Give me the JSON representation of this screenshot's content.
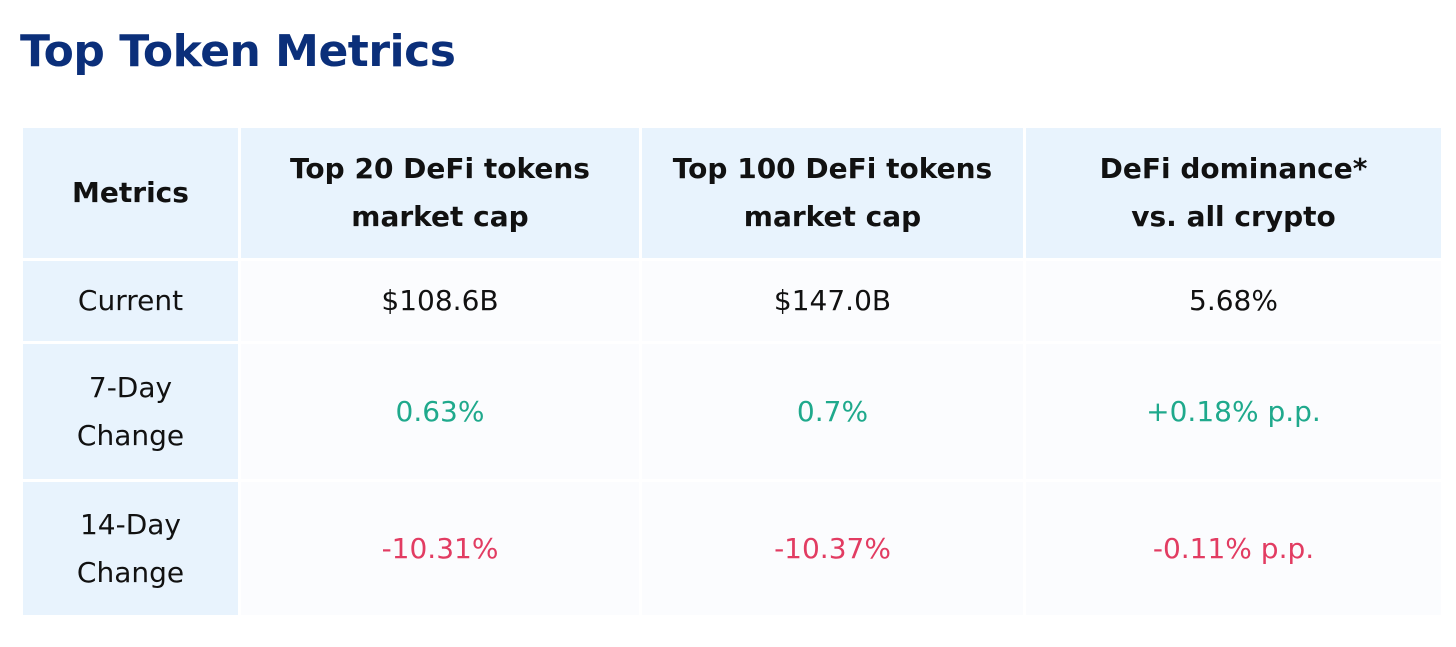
{
  "title": "Top Token Metrics",
  "colors": {
    "title": "#0b2f7a",
    "header_bg": "#e8f3fd",
    "label_bg": "#e8f3fd",
    "cell_bg": "#fbfcfe",
    "positive": "#1fa98c",
    "negative": "#e23c62",
    "neutral": "#111111",
    "border": "#ffffff"
  },
  "chart_data": {
    "type": "table",
    "title": "Top Token Metrics",
    "columns": [
      "Metrics",
      "Top 20 DeFi tokens market cap",
      "Top 100 DeFi tokens market cap",
      "DeFi dominance* vs. all crypto"
    ],
    "header_lines": [
      [
        "Metrics"
      ],
      [
        "Top 20 DeFi tokens",
        "market cap"
      ],
      [
        "Top 100 DeFi tokens",
        "market cap"
      ],
      [
        "DeFi dominance*",
        "vs. all crypto"
      ]
    ],
    "rows": [
      {
        "label_lines": [
          "Current"
        ],
        "values": [
          "$108.6B",
          "$147.0B",
          "5.68%"
        ],
        "sentiment": [
          "neutral",
          "neutral",
          "neutral"
        ]
      },
      {
        "label_lines": [
          "7-Day",
          "Change"
        ],
        "values": [
          "0.63%",
          "0.7%",
          "+0.18% p.p."
        ],
        "sentiment": [
          "positive",
          "positive",
          "positive"
        ]
      },
      {
        "label_lines": [
          "14-Day",
          "Change"
        ],
        "values": [
          "-10.31%",
          "-10.37%",
          "-0.11% p.p."
        ],
        "sentiment": [
          "negative",
          "negative",
          "negative"
        ]
      }
    ]
  }
}
